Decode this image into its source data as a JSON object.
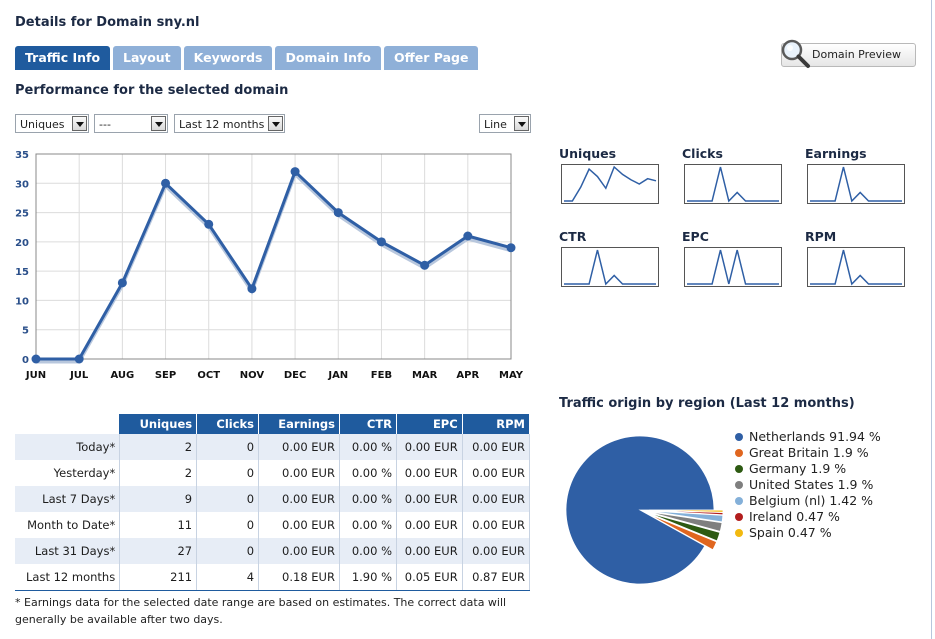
{
  "page": {
    "title": "Details for Domain sny.nl"
  },
  "tabs": [
    {
      "label": "Traffic Info",
      "active": true
    },
    {
      "label": "Layout",
      "active": false
    },
    {
      "label": "Keywords",
      "active": false
    },
    {
      "label": "Domain Info",
      "active": false
    },
    {
      "label": "Offer Page",
      "active": false
    }
  ],
  "preview_button": {
    "label": "Domain Preview",
    "icon": "magnifier-icon"
  },
  "performance": {
    "title": "Performance for the selected domain",
    "filters": {
      "metric": "Uniques",
      "secondary": "---",
      "range": "Last 12 months",
      "chart_type": "Line"
    }
  },
  "chart_data": [
    {
      "type": "line",
      "title": "Uniques",
      "categories": [
        "JUN",
        "JUL",
        "AUG",
        "SEP",
        "OCT",
        "NOV",
        "DEC",
        "JAN",
        "FEB",
        "MAR",
        "APR",
        "MAY"
      ],
      "series": [
        {
          "name": "Uniques",
          "values": [
            0,
            0,
            13,
            30,
            23,
            12,
            32,
            25,
            20,
            16,
            21,
            19
          ]
        }
      ],
      "ylim": [
        0,
        35
      ],
      "yticks": [
        0,
        5,
        10,
        15,
        20,
        25,
        30,
        35
      ],
      "color": "#2f5fa5",
      "grid": true
    }
  ],
  "sparklines": [
    {
      "title": "Uniques",
      "values": [
        0,
        0,
        13,
        30,
        23,
        12,
        32,
        25,
        20,
        16,
        21,
        19
      ]
    },
    {
      "title": "Clicks",
      "values": [
        0,
        0,
        0,
        0,
        4,
        0,
        1,
        0,
        0,
        0,
        0,
        0
      ]
    },
    {
      "title": "Earnings",
      "values": [
        0,
        0,
        0,
        0,
        4,
        0,
        1,
        0,
        0,
        0,
        0,
        0
      ]
    },
    {
      "title": "CTR",
      "values": [
        0,
        0,
        0,
        0,
        4,
        0,
        1,
        0,
        0,
        0,
        0,
        0
      ]
    },
    {
      "title": "EPC",
      "values": [
        0,
        0,
        0,
        0,
        4,
        0,
        4,
        0,
        0,
        0,
        0,
        0
      ]
    },
    {
      "title": "RPM",
      "values": [
        0,
        0,
        0,
        0,
        4,
        0,
        1,
        0,
        0,
        0,
        0,
        0
      ]
    }
  ],
  "stats_table": {
    "columns": [
      "",
      "Uniques",
      "Clicks",
      "Earnings",
      "CTR",
      "EPC",
      "RPM"
    ],
    "rows": [
      [
        "Today*",
        "2",
        "0",
        "0.00 EUR",
        "0.00 %",
        "0.00 EUR",
        "0.00 EUR"
      ],
      [
        "Yesterday*",
        "2",
        "0",
        "0.00 EUR",
        "0.00 %",
        "0.00 EUR",
        "0.00 EUR"
      ],
      [
        "Last 7 Days*",
        "9",
        "0",
        "0.00 EUR",
        "0.00 %",
        "0.00 EUR",
        "0.00 EUR"
      ],
      [
        "Month to Date*",
        "11",
        "0",
        "0.00 EUR",
        "0.00 %",
        "0.00 EUR",
        "0.00 EUR"
      ],
      [
        "Last 31 Days*",
        "27",
        "0",
        "0.00 EUR",
        "0.00 %",
        "0.00 EUR",
        "0.00 EUR"
      ],
      [
        "Last 12 months",
        "211",
        "4",
        "0.18 EUR",
        "1.90 %",
        "0.05 EUR",
        "0.87 EUR"
      ]
    ],
    "footnote": "* Earnings data for the selected date range are based on estimates. The correct data will generally be available after two days."
  },
  "region": {
    "title": "Traffic origin by region (Last 12 months)",
    "slices": [
      {
        "label": "Netherlands 91.94 %",
        "value": 91.94,
        "color": "#2f5fa5"
      },
      {
        "label": "Great Britain 1.9 %",
        "value": 1.9,
        "color": "#e0661f"
      },
      {
        "label": "Germany 1.9 %",
        "value": 1.9,
        "color": "#2d5a12"
      },
      {
        "label": "United States 1.9 %",
        "value": 1.9,
        "color": "#7f7f7f"
      },
      {
        "label": "Belgium (nl) 1.42 %",
        "value": 1.42,
        "color": "#84b0d9"
      },
      {
        "label": "Ireland 0.47 %",
        "value": 0.47,
        "color": "#b21e1e"
      },
      {
        "label": "Spain 0.47 %",
        "value": 0.47,
        "color": "#f2b90f"
      }
    ]
  }
}
